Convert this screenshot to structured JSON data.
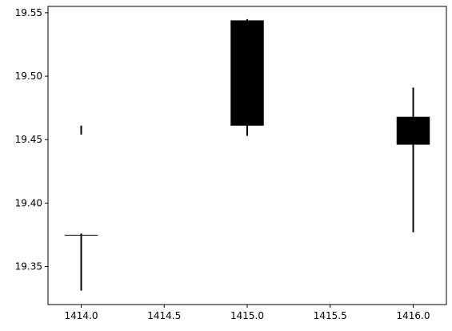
{
  "chart_data": {
    "type": "candlestick",
    "title": "",
    "xlabel": "",
    "ylabel": "",
    "xlim": [
      1413.8,
      1416.2
    ],
    "ylim": [
      19.32,
      19.555
    ],
    "xticks": [
      1414.0,
      1414.5,
      1415.0,
      1415.5,
      1416.0
    ],
    "xtick_labels": [
      "1414.0",
      "1414.5",
      "1415.0",
      "1415.5",
      "1416.0"
    ],
    "yticks": [
      19.35,
      19.4,
      19.45,
      19.5,
      19.55
    ],
    "ytick_labels": [
      "19.35",
      "19.40",
      "19.45",
      "19.50",
      "19.55"
    ],
    "grid": false,
    "candles": [
      {
        "x": 1414.0,
        "open": 19.375,
        "close": 19.375,
        "low": 19.331,
        "high": 19.376,
        "extra_wick": {
          "low": 19.454,
          "high": 19.461
        }
      },
      {
        "x": 1415.0,
        "open": 19.461,
        "close": 19.544,
        "low": 19.453,
        "high": 19.545
      },
      {
        "x": 1416.0,
        "open": 19.468,
        "close": 19.446,
        "low": 19.377,
        "high": 19.491
      }
    ],
    "candle_width": 0.2,
    "color": "#000000"
  }
}
